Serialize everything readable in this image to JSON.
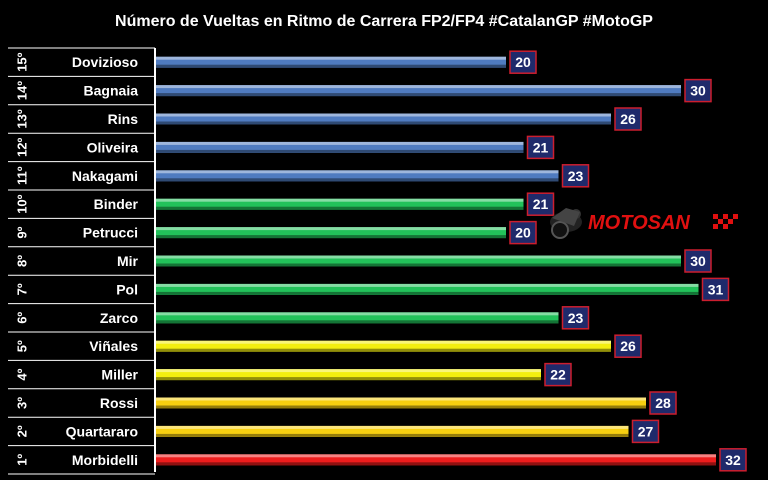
{
  "chart_data": {
    "type": "bar",
    "orientation": "horizontal",
    "title": "Número de Vueltas en Ritmo de Carrera FP2/FP4 #CatalanGP #MotoGP",
    "positions": [
      "15º",
      "14º",
      "13º",
      "12º",
      "11º",
      "10º",
      "9º",
      "8º",
      "7º",
      "6º",
      "5º",
      "4º",
      "3º",
      "2º",
      "1º"
    ],
    "categories": [
      "Dovizioso",
      "Bagnaia",
      "Rins",
      "Oliveira",
      "Nakagami",
      "Binder",
      "Petrucci",
      "Mir",
      "Pol",
      "Zarco",
      "Viñales",
      "Miller",
      "Rossi",
      "Quartararo",
      "Morbidelli"
    ],
    "values": [
      20,
      30,
      26,
      21,
      23,
      21,
      20,
      30,
      31,
      23,
      26,
      22,
      28,
      27,
      32
    ],
    "colors": [
      "#4f7bc0",
      "#4f7bc0",
      "#4f7bc0",
      "#4f7bc0",
      "#4f7bc0",
      "#22c25a",
      "#22c25a",
      "#22c25a",
      "#22c25a",
      "#22c25a",
      "#f2ef10",
      "#f2ef10",
      "#f7cf10",
      "#f7cf10",
      "#ee1c1c"
    ],
    "xlim": [
      0,
      32
    ],
    "grid": false,
    "legend": "none"
  },
  "logo": {
    "text": "MOTOSAN",
    "icon": "motorcycle-rider-icon"
  }
}
